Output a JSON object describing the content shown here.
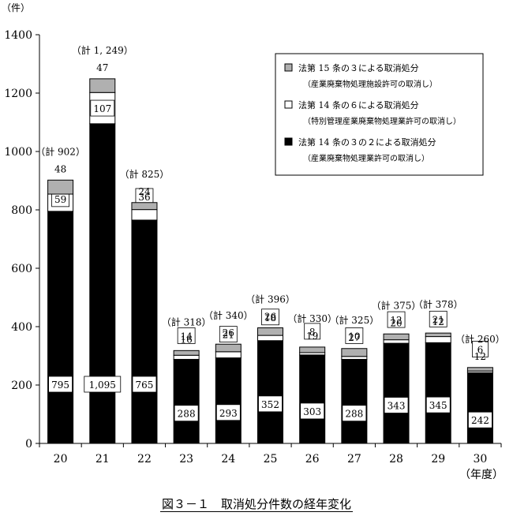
{
  "chart_data": {
    "type": "bar",
    "stacked": true,
    "title": "図３－１　取消処分件数の経年変化",
    "ylabel": "（件）",
    "xlabel": "（年度）",
    "ylim": [
      0,
      1400
    ],
    "yticks": [
      0,
      200,
      400,
      600,
      800,
      1000,
      1200,
      1400
    ],
    "grid": false,
    "legend_position": "top-right",
    "categories": [
      "20",
      "21",
      "22",
      "23",
      "24",
      "25",
      "26",
      "27",
      "28",
      "29",
      "30"
    ],
    "series": [
      {
        "name": "法第 14 条の３の２による取消処分",
        "name_sub": "（産業廃棄物処理業許可の取消し）",
        "color": "#000000",
        "values": [
          795,
          1095,
          765,
          288,
          293,
          352,
          303,
          288,
          343,
          345,
          242
        ],
        "labels": [
          "795",
          "1,095",
          "765",
          "288",
          "293",
          "352",
          "303",
          "288",
          "343",
          "345",
          "242"
        ]
      },
      {
        "name": "法第 14 条の６による取消処分",
        "name_sub": "（特別管理産業廃棄物処理業許可の取消し）",
        "color": "#ffffff",
        "values": [
          59,
          107,
          36,
          14,
          21,
          18,
          8,
          10,
          12,
          21,
          6
        ],
        "labels": [
          "59",
          "107",
          "36",
          "14",
          "21",
          "18",
          "8",
          "10",
          "12",
          "21",
          "6"
        ]
      },
      {
        "name": "法第 15 条の３による取消処分",
        "name_sub": "（産業廃棄物処理施設許可の取消し）",
        "color": "#b0b0b0",
        "values": [
          48,
          47,
          24,
          16,
          26,
          26,
          19,
          27,
          20,
          12,
          12
        ],
        "labels": [
          "48",
          "47",
          "24",
          "16",
          "26",
          "26",
          "19",
          "27",
          "20",
          "12",
          "12"
        ]
      }
    ],
    "totals": [
      902,
      1249,
      825,
      318,
      340,
      396,
      330,
      325,
      375,
      378,
      260
    ],
    "total_labels": [
      "（計 902）",
      "（計 1, 249）",
      "（計 825）",
      "（計 318）",
      "（計 340）",
      "（計 396）",
      "（計 330）",
      "（計 325）",
      "（計 375）",
      "（計 378）",
      "（計 260）"
    ]
  }
}
